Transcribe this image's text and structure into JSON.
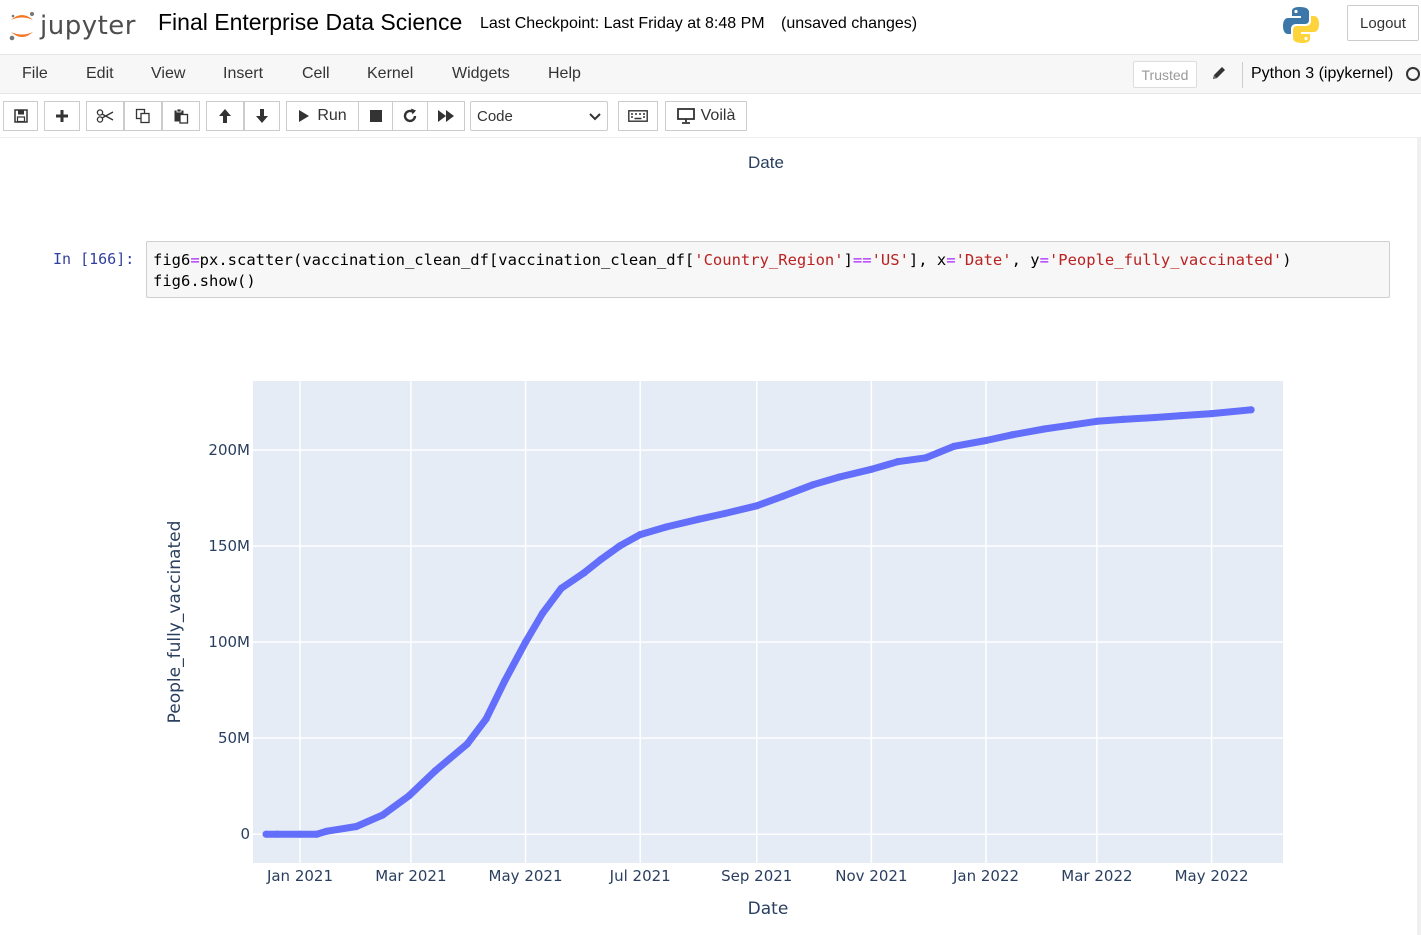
{
  "header": {
    "logo_text": "jupyter",
    "notebook_title": "Final Enterprise Data Science",
    "checkpoint": "Last Checkpoint: Last Friday at 8:48 PM",
    "unsaved": "(unsaved changes)",
    "logout_label": "Logout"
  },
  "menubar": {
    "items": [
      "File",
      "Edit",
      "View",
      "Insert",
      "Cell",
      "Kernel",
      "Widgets",
      "Help"
    ],
    "trusted_label": "Trusted",
    "kernel_name": "Python 3 (ipykernel)"
  },
  "toolbar": {
    "run_label": "Run",
    "cell_type": "Code",
    "voila_label": "Voilà",
    "icons": [
      "save-icon",
      "plus-icon",
      "scissors-icon",
      "copy-icon",
      "paste-icon",
      "arrow-up-icon",
      "arrow-down-icon",
      "play-icon",
      "stop-icon",
      "restart-icon",
      "fast-forward-icon",
      "keyboard-icon",
      "monitor-icon"
    ]
  },
  "notebook": {
    "previous_output_xlabel": "Date",
    "cell": {
      "prompt": "In [166]:",
      "code_line1_parts": [
        {
          "t": "fig6",
          "c": ""
        },
        {
          "t": "=",
          "c": "op"
        },
        {
          "t": "px.scatter(vaccination_clean_df[vaccination_clean_df[",
          "c": ""
        },
        {
          "t": "'Country_Region'",
          "c": "str"
        },
        {
          "t": "]",
          "c": ""
        },
        {
          "t": "==",
          "c": "op"
        },
        {
          "t": "'US'",
          "c": "str"
        },
        {
          "t": "], x",
          "c": ""
        },
        {
          "t": "=",
          "c": "op"
        },
        {
          "t": "'Date'",
          "c": "str"
        },
        {
          "t": ", y",
          "c": ""
        },
        {
          "t": "=",
          "c": "op"
        },
        {
          "t": "'People_fully_vaccinated'",
          "c": "str"
        },
        {
          "t": ")",
          "c": ""
        }
      ],
      "code_line2": "fig6.show()"
    }
  },
  "chart_data": {
    "type": "scatter",
    "title": "",
    "xlabel": "Date",
    "ylabel": "People_fully_vaccinated",
    "marker_color": "#636efa",
    "plot_bgcolor": "#e5ecf6",
    "grid": true,
    "x_tick_labels": [
      "Jan 2021",
      "Mar 2021",
      "May 2021",
      "Jul 2021",
      "Sep 2021",
      "Nov 2021",
      "Jan 2022",
      "Mar 2022",
      "May 2022"
    ],
    "x_tick_dates": [
      "2021-01-01",
      "2021-03-01",
      "2021-05-01",
      "2021-07-01",
      "2021-09-01",
      "2021-11-01",
      "2022-01-01",
      "2022-03-01",
      "2022-05-01"
    ],
    "y_tick_labels": [
      "0",
      "50M",
      "100M",
      "150M",
      "200M"
    ],
    "y_tick_values": [
      0,
      50000000,
      100000000,
      150000000,
      200000000
    ],
    "xlim": [
      "2020-12-07",
      "2022-06-08"
    ],
    "ylim": [
      -15000000,
      236000000
    ],
    "x": [
      "2020-12-14",
      "2020-12-20",
      "2021-01-01",
      "2021-01-10",
      "2021-01-15",
      "2021-01-31",
      "2021-02-14",
      "2021-02-28",
      "2021-03-14",
      "2021-03-31",
      "2021-04-10",
      "2021-04-20",
      "2021-05-01",
      "2021-05-10",
      "2021-05-20",
      "2021-06-01",
      "2021-06-10",
      "2021-06-20",
      "2021-07-01",
      "2021-07-15",
      "2021-08-01",
      "2021-08-15",
      "2021-09-01",
      "2021-09-15",
      "2021-10-01",
      "2021-10-15",
      "2021-11-01",
      "2021-11-15",
      "2021-11-30",
      "2021-12-15",
      "2022-01-01",
      "2022-01-15",
      "2022-02-01",
      "2022-02-15",
      "2022-03-01",
      "2022-03-15",
      "2022-04-01",
      "2022-04-15",
      "2022-05-01",
      "2022-05-22"
    ],
    "y": [
      0,
      0,
      0,
      0,
      1500000,
      4000000,
      10000000,
      20000000,
      33000000,
      47000000,
      60000000,
      80000000,
      100000000,
      115000000,
      128000000,
      136000000,
      143000000,
      150000000,
      156000000,
      160000000,
      164000000,
      167000000,
      171000000,
      176000000,
      182000000,
      186000000,
      190000000,
      194000000,
      196000000,
      202000000,
      205000000,
      208000000,
      211000000,
      213000000,
      215000000,
      216000000,
      217000000,
      218000000,
      219000000,
      221000000
    ]
  }
}
